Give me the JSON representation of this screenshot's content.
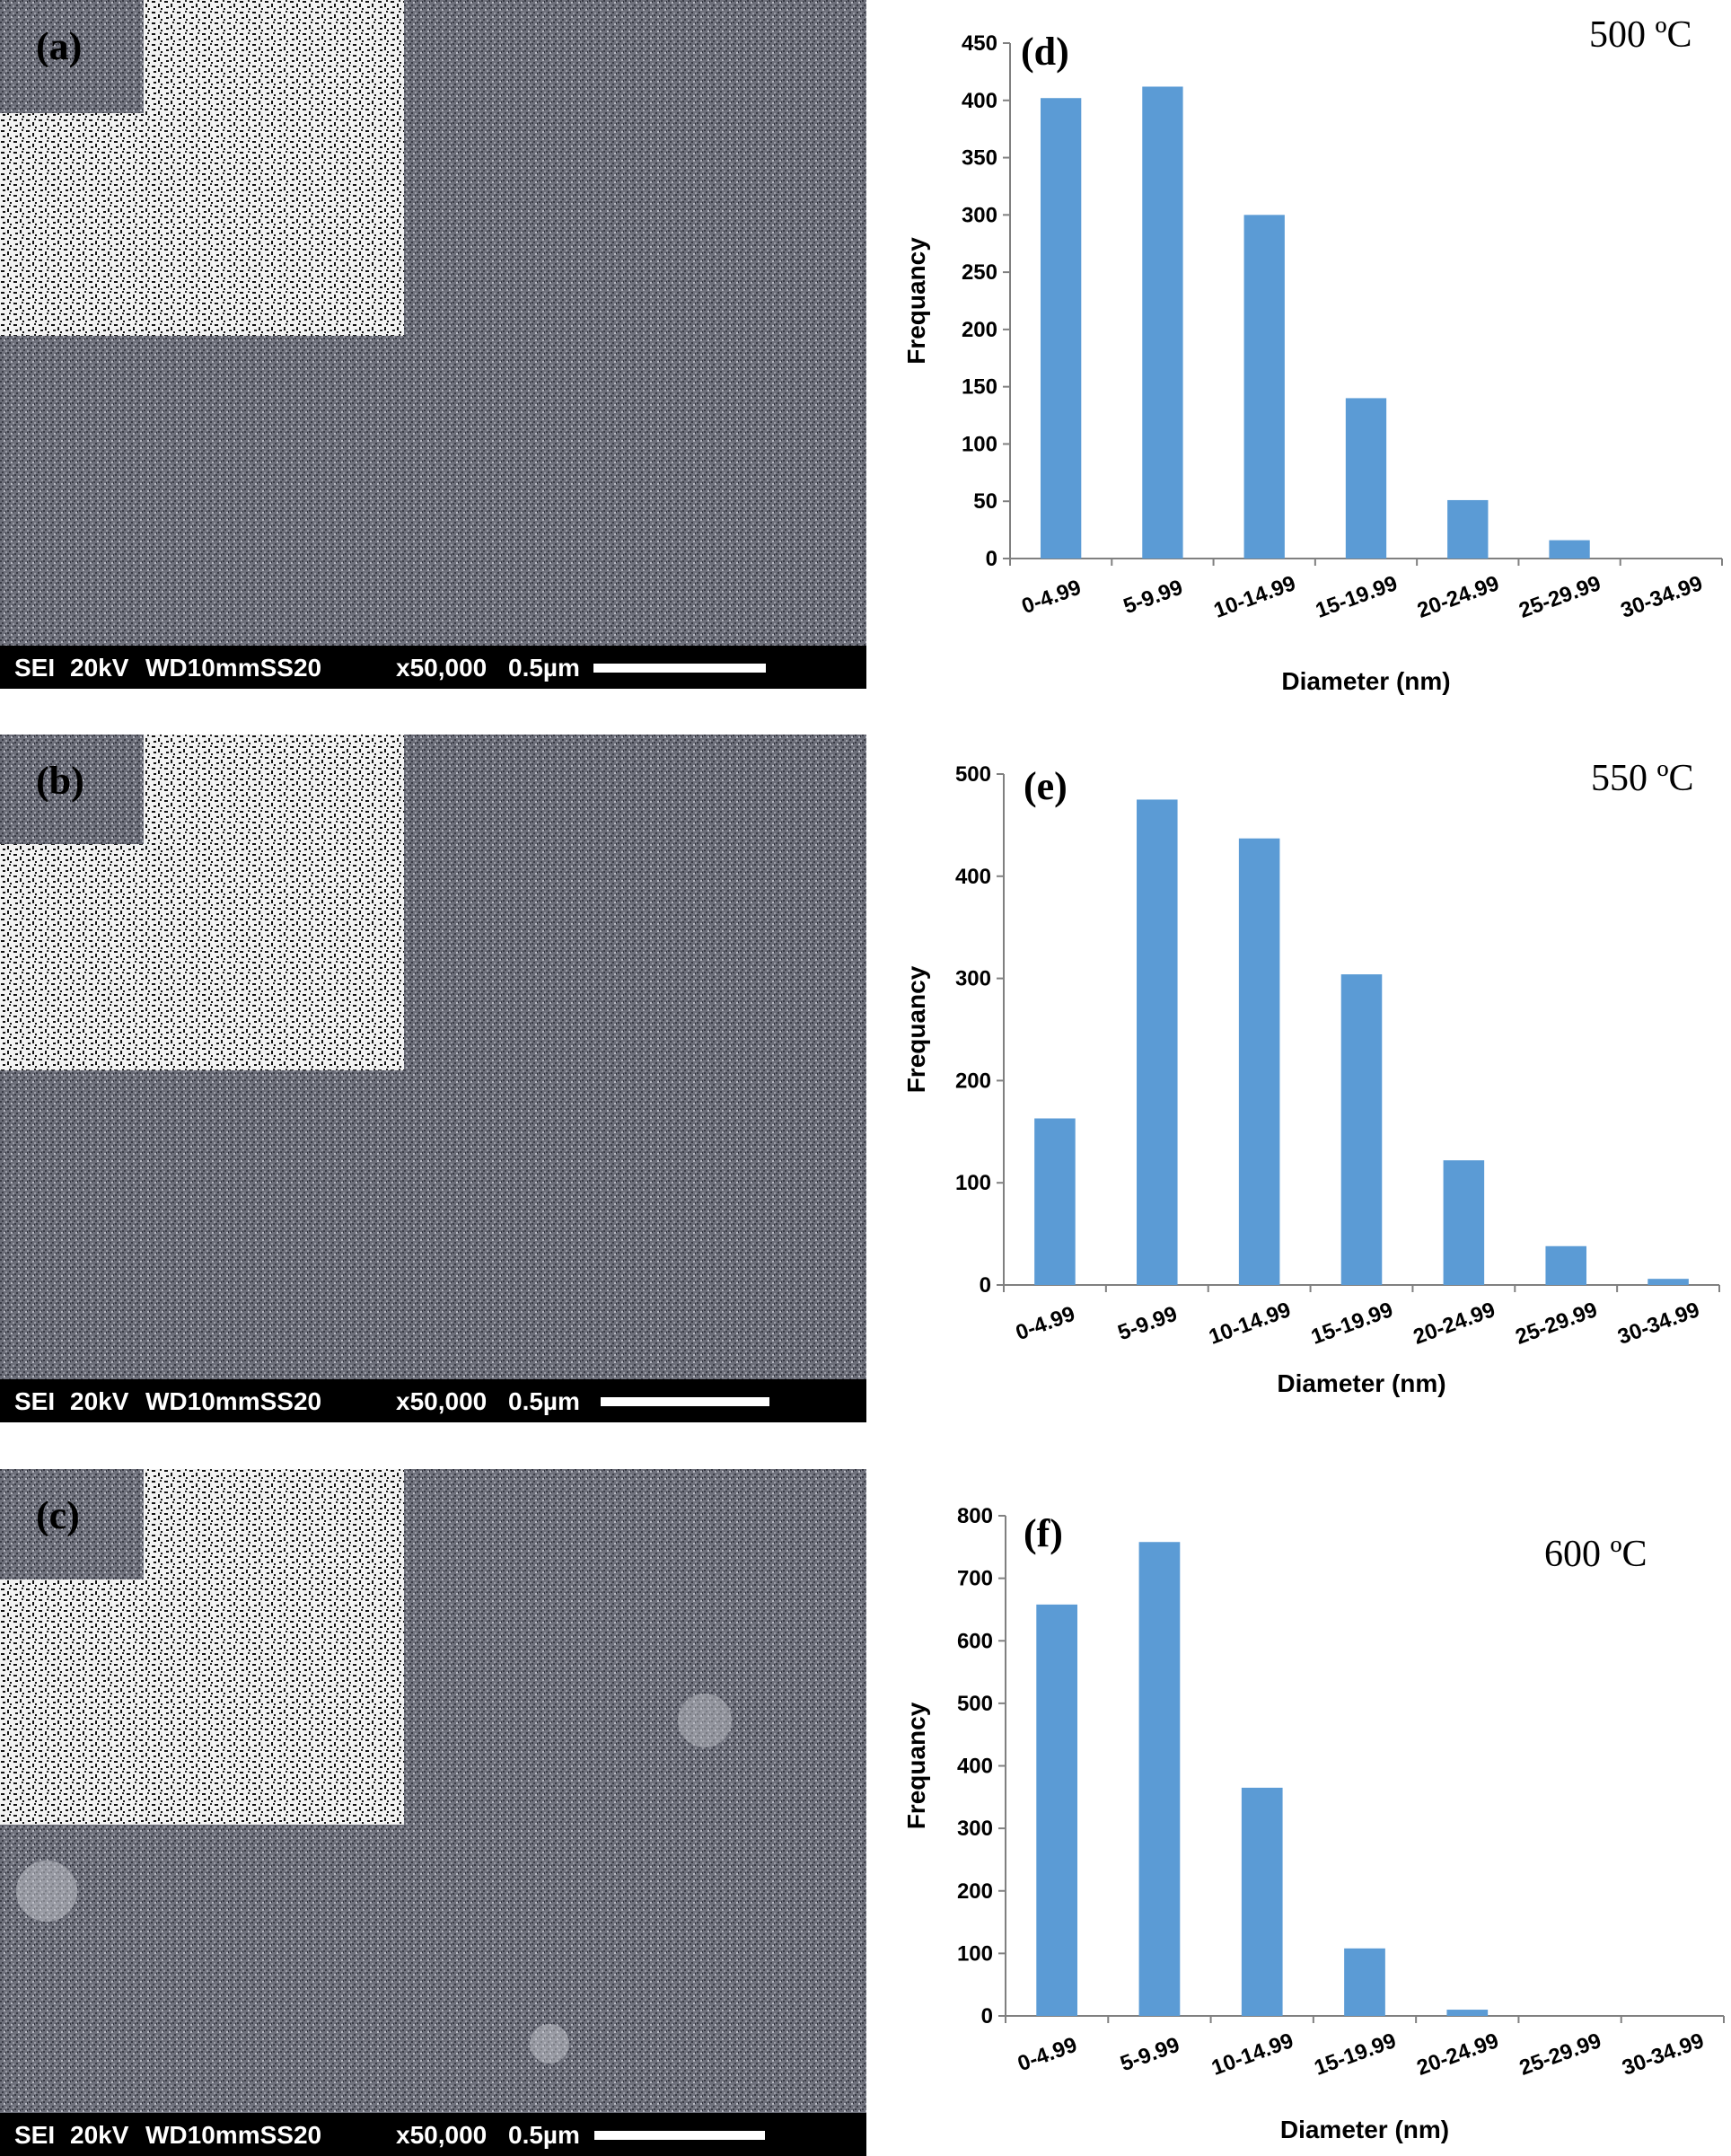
{
  "sem_panels": [
    {
      "label": "(a)",
      "scalebar": {
        "mode": "SEI",
        "voltage": "20kV",
        "wd": "WD10mmSS20",
        "mag": "x50,000",
        "scale": "0.5µm"
      }
    },
    {
      "label": "(b)",
      "scalebar": {
        "mode": "SEI",
        "voltage": "20kV",
        "wd": "WD10mmSS20",
        "mag": "x50,000",
        "scale": "0.5µm"
      }
    },
    {
      "label": "(c)",
      "scalebar": {
        "mode": "SEI",
        "voltage": "20kV",
        "wd": "WD10mmSS20",
        "mag": "x50,000",
        "scale": "0.5µm"
      }
    }
  ],
  "chart_data": [
    {
      "type": "bar",
      "panel_label": "(d)",
      "annotation": "500 ºC",
      "xlabel": "Diameter (nm)",
      "ylabel": "Frequancy",
      "categories": [
        "0-4.99",
        "5-9.99",
        "10-14.99",
        "15-19.99",
        "20-24.99",
        "25-29.99",
        "30-34.99"
      ],
      "values": [
        402,
        412,
        300,
        140,
        51,
        16,
        0
      ],
      "ylim": [
        0,
        450
      ],
      "yticks": [
        0,
        50,
        100,
        150,
        200,
        250,
        300,
        350,
        400,
        450
      ],
      "grid": false,
      "bar_color": "#5b9bd5"
    },
    {
      "type": "bar",
      "panel_label": "(e)",
      "annotation": "550 ºC",
      "xlabel": "Diameter (nm)",
      "ylabel": "Frequancy",
      "categories": [
        "0-4.99",
        "5-9.99",
        "10-14.99",
        "15-19.99",
        "20-24.99",
        "25-29.99",
        "30-34.99"
      ],
      "values": [
        163,
        475,
        437,
        304,
        122,
        38,
        6
      ],
      "ylim": [
        0,
        500
      ],
      "yticks": [
        0,
        100,
        200,
        300,
        400,
        500
      ],
      "grid": false,
      "bar_color": "#5b9bd5"
    },
    {
      "type": "bar",
      "panel_label": "(f)",
      "annotation": "600 ºC",
      "xlabel": "Diameter (nm)",
      "ylabel": "Frequancy",
      "categories": [
        "0-4.99",
        "5-9.99",
        "10-14.99",
        "15-19.99",
        "20-24.99",
        "25-29.99",
        "30-34.99"
      ],
      "values": [
        658,
        758,
        365,
        108,
        10,
        0,
        0
      ],
      "ylim": [
        0,
        800
      ],
      "yticks": [
        0,
        100,
        200,
        300,
        400,
        500,
        600,
        700,
        800
      ],
      "grid": false,
      "bar_color": "#5b9bd5"
    }
  ]
}
